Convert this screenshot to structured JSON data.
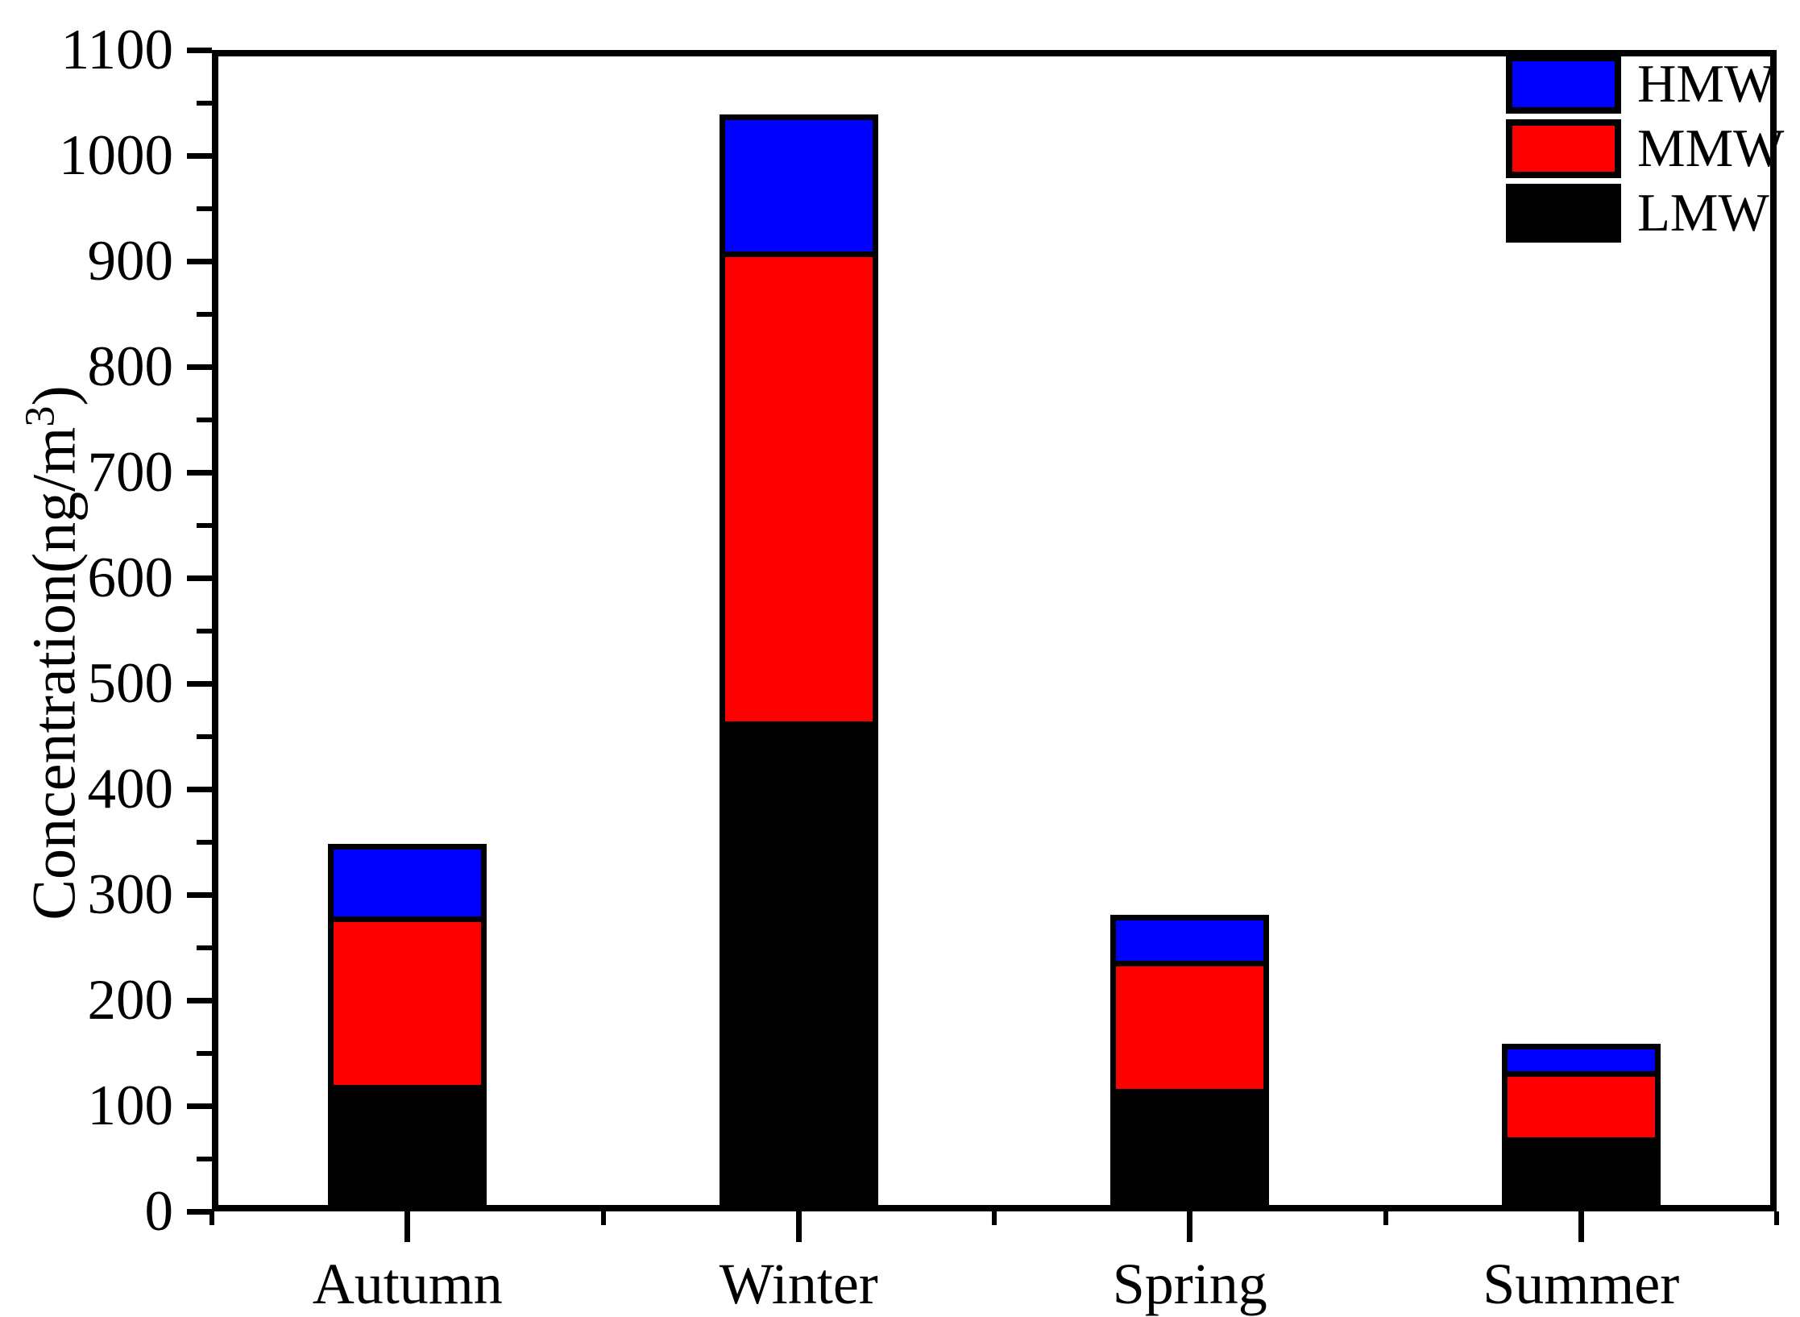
{
  "chart_data": {
    "type": "bar",
    "stacked": true,
    "title": "",
    "categories": [
      "Autumn",
      "Winter",
      "Spring",
      "Summer"
    ],
    "series": [
      {
        "name": "LMW",
        "color": "#000000",
        "values": [
          114,
          458,
          110,
          64
        ]
      },
      {
        "name": "MMW",
        "color": "#FF0000",
        "values": [
          159,
          445,
          121,
          63
        ]
      },
      {
        "name": "HMW",
        "color": "#0000FF",
        "values": [
          69,
          130,
          44,
          26
        ]
      }
    ],
    "stacked_totals": [
      342,
      1033,
      275,
      153
    ],
    "xlabel": "",
    "ylabel_prefix": "Concentration(ng/m",
    "ylabel_sup": "3",
    "ylabel_suffix": ")",
    "ylim": [
      0,
      1100
    ],
    "y_major_ticks": [
      0,
      100,
      200,
      300,
      400,
      500,
      600,
      700,
      800,
      900,
      1000,
      1100
    ],
    "y_minor_step": 50,
    "grid": "off",
    "legend": {
      "position": "top-right-inside",
      "entries": [
        {
          "label": "HMW",
          "color": "#0000FF"
        },
        {
          "label": "MMW",
          "color": "#FF0000"
        },
        {
          "label": "LMW",
          "color": "#000000"
        }
      ]
    },
    "axis_color": "#000000",
    "background_color": "#FFFFFF"
  }
}
